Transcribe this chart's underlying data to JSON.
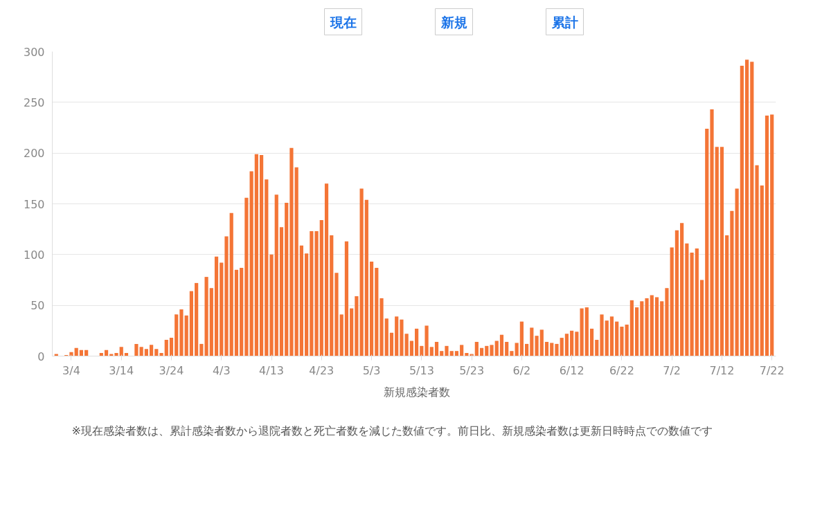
{
  "chart_data": {
    "type": "bar",
    "categories": [
      null,
      null,
      null,
      "3/4",
      null,
      null,
      null,
      null,
      null,
      null,
      null,
      null,
      null,
      "3/14",
      null,
      null,
      null,
      null,
      null,
      null,
      null,
      null,
      null,
      "3/24",
      null,
      null,
      null,
      null,
      null,
      null,
      null,
      null,
      null,
      "4/3",
      null,
      null,
      null,
      null,
      null,
      null,
      null,
      null,
      null,
      "4/13",
      null,
      null,
      null,
      null,
      null,
      null,
      null,
      null,
      null,
      "4/23",
      null,
      null,
      null,
      null,
      null,
      null,
      null,
      null,
      null,
      "5/3",
      null,
      null,
      null,
      null,
      null,
      null,
      null,
      null,
      null,
      "5/13",
      null,
      null,
      null,
      null,
      null,
      null,
      null,
      null,
      null,
      "5/23",
      null,
      null,
      null,
      null,
      null,
      null,
      null,
      null,
      null,
      "6/2",
      null,
      null,
      null,
      null,
      null,
      null,
      null,
      null,
      null,
      "6/12",
      null,
      null,
      null,
      null,
      null,
      null,
      null,
      null,
      null,
      "6/22",
      null,
      null,
      null,
      null,
      null,
      null,
      null,
      null,
      null,
      "7/2",
      null,
      null,
      null,
      null,
      null,
      null,
      null,
      null,
      null,
      "7/12",
      null,
      null,
      null,
      null,
      null,
      null,
      null,
      null,
      null,
      "7/22"
    ],
    "series": [
      {
        "name": "新規感染者数",
        "color": "#f47536",
        "values": [
          2,
          0,
          1,
          4,
          8,
          6,
          6,
          0,
          0,
          3,
          6,
          2,
          3,
          9,
          3,
          0,
          12,
          9,
          7,
          11,
          7,
          3,
          16,
          18,
          41,
          46,
          40,
          64,
          72,
          12,
          78,
          67,
          98,
          92,
          118,
          141,
          85,
          87,
          156,
          182,
          199,
          198,
          174,
          100,
          159,
          127,
          151,
          205,
          186,
          109,
          101,
          123,
          123,
          134,
          170,
          119,
          82,
          41,
          113,
          47,
          59,
          165,
          154,
          93,
          87,
          57,
          37,
          23,
          39,
          36,
          22,
          15,
          27,
          10,
          30,
          9,
          14,
          5,
          10,
          5,
          5,
          11,
          3,
          2,
          14,
          8,
          10,
          11,
          15,
          21,
          14,
          5,
          13,
          34,
          12,
          28,
          20,
          26,
          14,
          13,
          12,
          18,
          22,
          25,
          24,
          47,
          48,
          27,
          16,
          41,
          35,
          39,
          34,
          29,
          31,
          55,
          48,
          54,
          57,
          60,
          58,
          54,
          67,
          107,
          124,
          131,
          111,
          102,
          106,
          75,
          224,
          243,
          206,
          206,
          119,
          143,
          165,
          286,
          292,
          290,
          188,
          168,
          237,
          238
        ]
      }
    ],
    "ylim": [
      0,
      300
    ],
    "yticks": [
      0,
      50,
      100,
      150,
      200,
      250,
      300
    ],
    "grid": "y",
    "legend": "bottom",
    "annotations": [
      "現在",
      "新規",
      "累計",
      "※現在感染者数は、累計感染者数から退院者数と死亡者数を減じた数値です。前日比、新規感染者数は更新日時時点での数値です"
    ]
  }
}
